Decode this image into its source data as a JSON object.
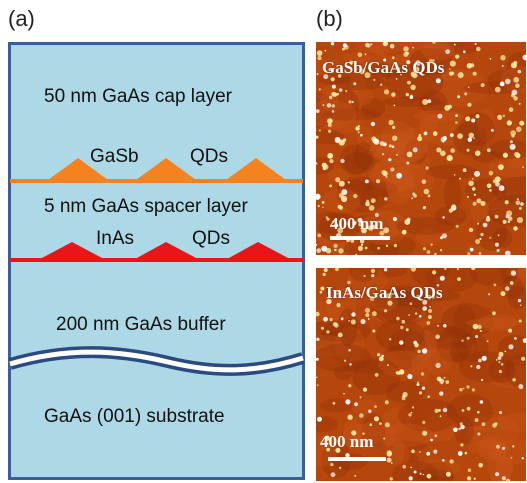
{
  "panel_a": {
    "label": "(a)",
    "cap_layer": "50 nm GaAs cap layer",
    "gasb_label": "GaSb",
    "qds_label_top": "QDs",
    "spacer_layer": "5 nm GaAs spacer layer",
    "inas_label": "InAs",
    "qds_label_bottom": "QDs",
    "buffer_layer": "200 nm GaAs buffer",
    "substrate": "GaAs (001) substrate"
  },
  "panel_b": {
    "label": "(b)",
    "top_image_title": "GaSb/GaAs QDs",
    "top_scale_bar": "400 nm",
    "bottom_image_title": "InAs/GaAs QDs",
    "bottom_scale_bar": "400 nm"
  },
  "colors": {
    "layer_fill": "#add8e6",
    "border": "#3a5f9a",
    "gasb_dots": "#f5821f",
    "inas_dots": "#e8161b",
    "afm_bg": "#b5460c"
  }
}
